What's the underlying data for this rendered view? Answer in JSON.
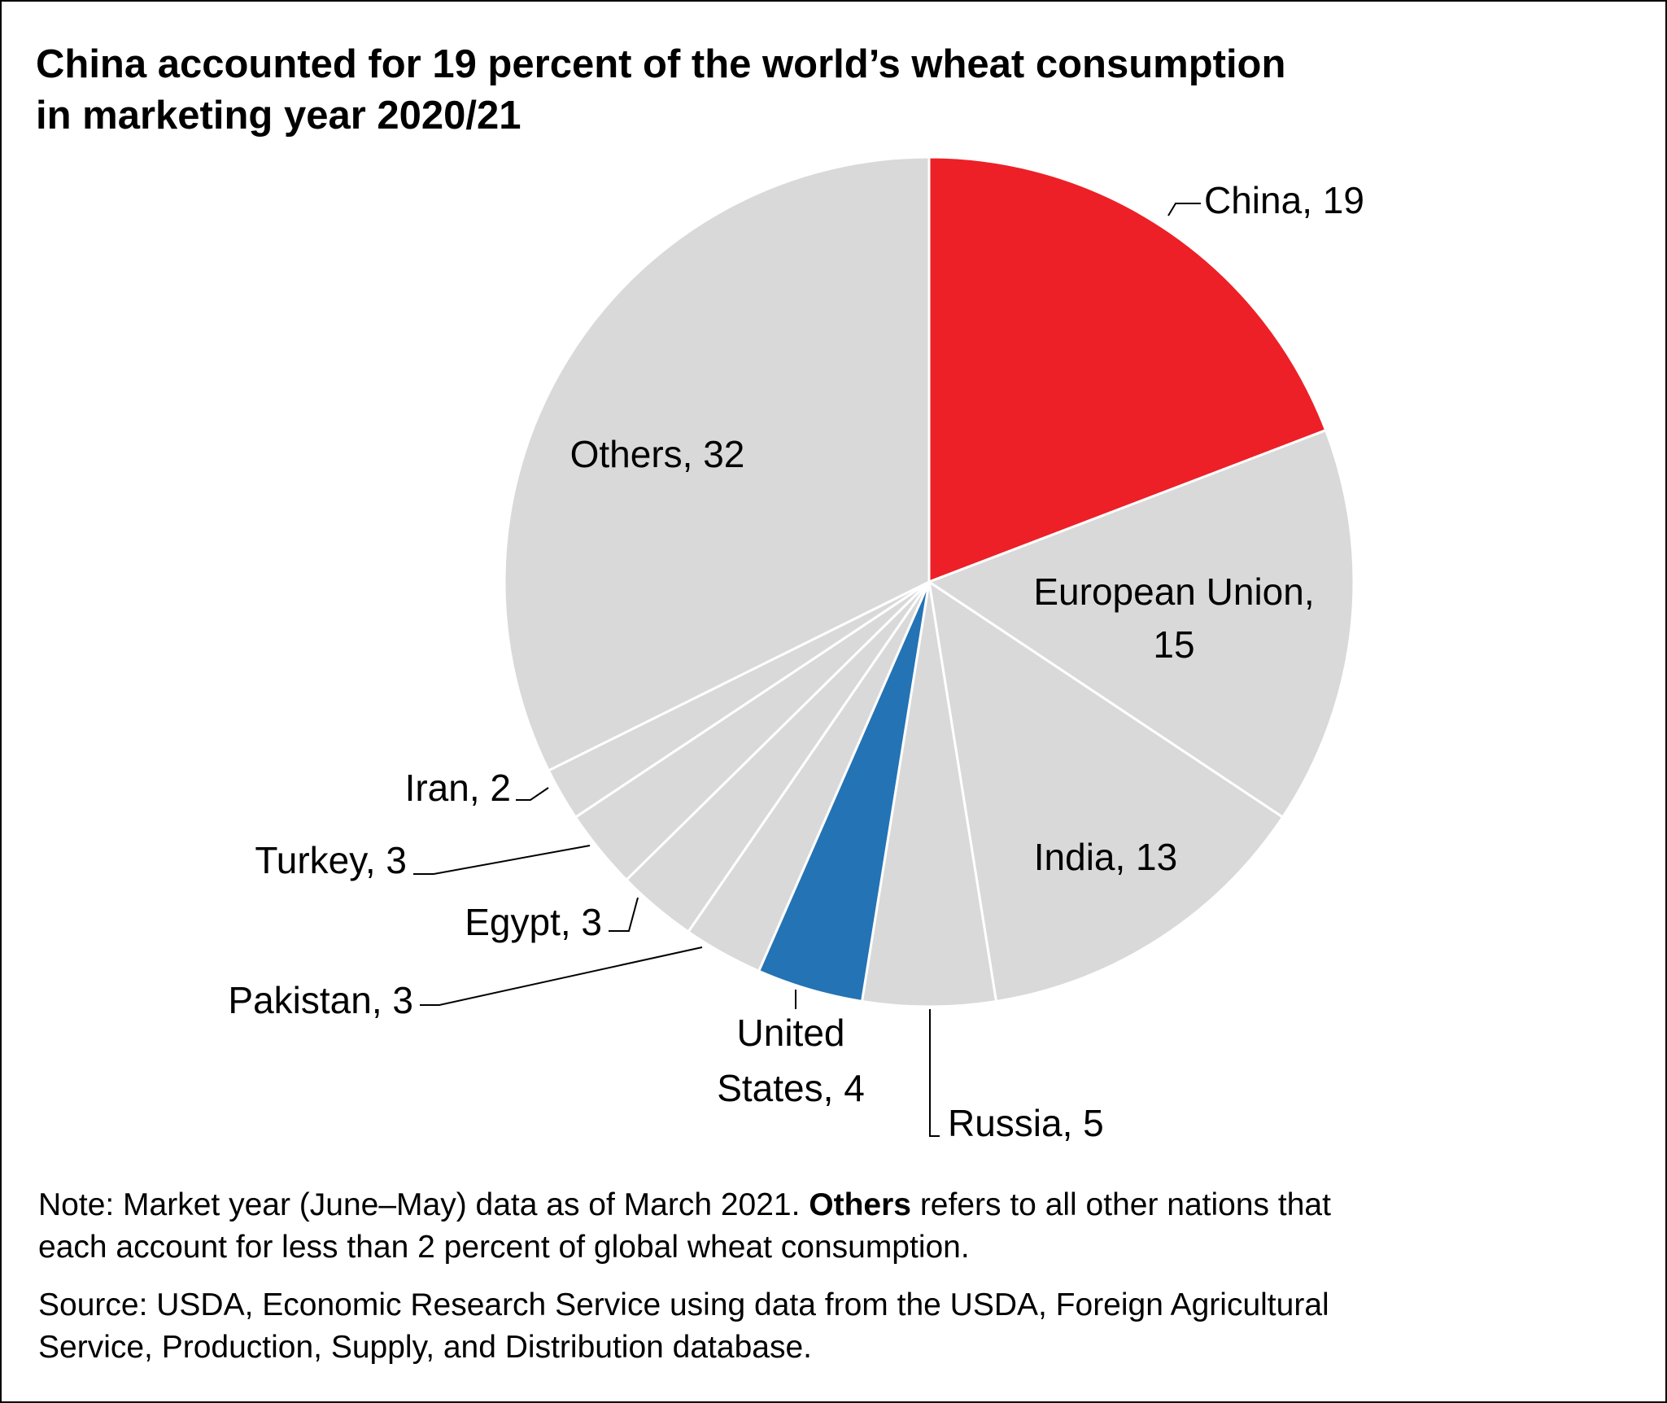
{
  "title_line1": "China accounted for 19 percent of the world’s wheat consumption",
  "title_line2": "in marketing year 2020/21",
  "note": {
    "prefix": "Note: Market year (June–May) data as of March 2021. ",
    "bold": "Others",
    "suffix_line1": " refers to all other nations that",
    "line2": "each account for less than 2 percent of global wheat consumption."
  },
  "source": {
    "line1": "Source: USDA, Economic Research Service using data from the USDA, Foreign Agricultural",
    "line2": "Service, Production, Supply, and Distribution database."
  },
  "colors": {
    "highlight_red": "#ED2027",
    "highlight_blue": "#2473B4",
    "default_slice": "#D9D9D9"
  },
  "chart_data": {
    "type": "pie",
    "unit": "percent",
    "slices": [
      {
        "name": "China",
        "value": 19,
        "color": "#ED2027",
        "label_lines": [
          "China, 19"
        ]
      },
      {
        "name": "European Union",
        "value": 15,
        "color": "#D9D9D9",
        "label_lines": [
          "European Union,",
          "15"
        ]
      },
      {
        "name": "India",
        "value": 13,
        "color": "#D9D9D9",
        "label_lines": [
          "India, 13"
        ]
      },
      {
        "name": "Russia",
        "value": 5,
        "color": "#D9D9D9",
        "label_lines": [
          "Russia, 5"
        ]
      },
      {
        "name": "United States",
        "value": 4,
        "color": "#2473B4",
        "label_lines": [
          "United",
          "States, 4"
        ]
      },
      {
        "name": "Pakistan",
        "value": 3,
        "color": "#D9D9D9",
        "label_lines": [
          "Pakistan, 3"
        ]
      },
      {
        "name": "Egypt",
        "value": 3,
        "color": "#D9D9D9",
        "label_lines": [
          "Egypt, 3"
        ]
      },
      {
        "name": "Turkey",
        "value": 3,
        "color": "#D9D9D9",
        "label_lines": [
          "Turkey, 3"
        ]
      },
      {
        "name": "Iran",
        "value": 2,
        "color": "#D9D9D9",
        "label_lines": [
          "Iran, 2"
        ]
      },
      {
        "name": "Others",
        "value": 32,
        "color": "#D9D9D9",
        "label_lines": [
          "Others, 32"
        ]
      }
    ]
  }
}
